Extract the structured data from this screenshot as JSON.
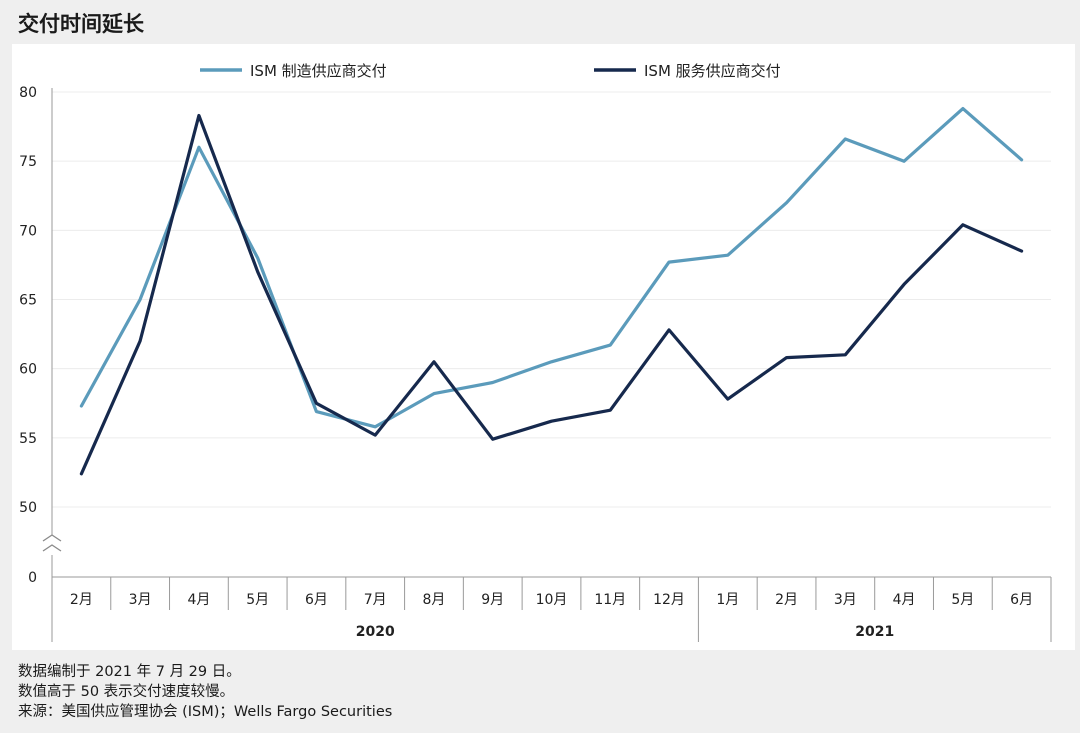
{
  "title": "交付时间延长",
  "notes": [
    "数据编制于 2021 年 7 月 29 日。",
    "数值高于 50 表示交付速度较慢。",
    "来源：美国供应管理协会 (ISM)；Wells Fargo Securities"
  ],
  "chart_data": {
    "type": "line",
    "categories": [
      "2月",
      "3月",
      "4月",
      "5月",
      "6月",
      "7月",
      "8月",
      "9月",
      "10月",
      "11月",
      "12月",
      "1月",
      "2月",
      "3月",
      "4月",
      "5月",
      "6月"
    ],
    "year_groups": [
      {
        "label": "2020",
        "span": 11
      },
      {
        "label": "2021",
        "span": 6
      }
    ],
    "y_ticks": [
      0,
      50,
      55,
      60,
      65,
      70,
      75,
      80
    ],
    "ylim": [
      50,
      80
    ],
    "axis_break": true,
    "legend_position": "top",
    "grid": true,
    "series": [
      {
        "name": "ISM 制造供应商交付",
        "color": "#5b9bbb",
        "values": [
          57.3,
          65.0,
          76.0,
          68.0,
          56.9,
          55.8,
          58.2,
          59.0,
          60.5,
          61.7,
          67.7,
          68.2,
          72.0,
          76.6,
          75.0,
          78.8,
          75.1
        ]
      },
      {
        "name": "ISM 服务供应商交付",
        "color": "#16294d",
        "values": [
          52.4,
          62.0,
          78.3,
          67.0,
          57.5,
          55.2,
          60.5,
          54.9,
          56.2,
          57.0,
          62.8,
          57.8,
          60.8,
          61.0,
          66.1,
          70.4,
          68.5
        ]
      }
    ]
  }
}
